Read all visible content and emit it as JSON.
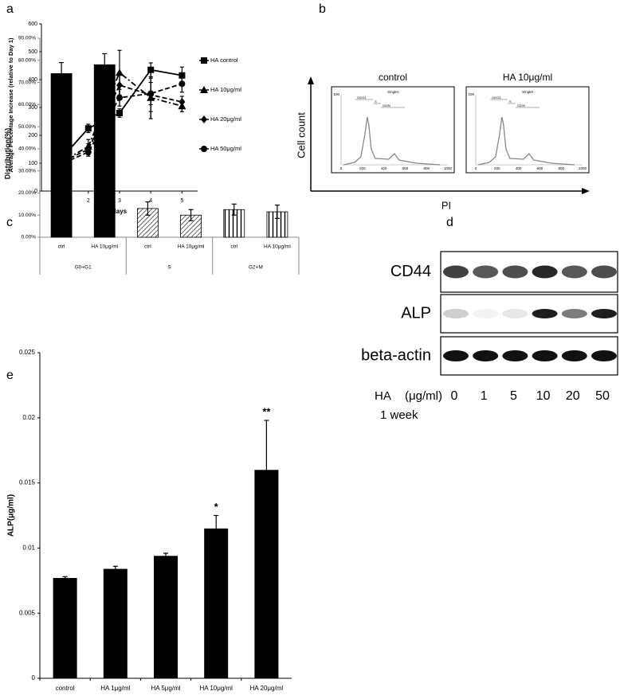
{
  "chart_data": [
    {
      "type": "line",
      "panel_label": "a",
      "x_label": "days",
      "y_label": "Average Percentage Increase (relative to Day 1)",
      "x": [
        1,
        2,
        3,
        4,
        5
      ],
      "xlim": [
        0.5,
        5.5
      ],
      "xticks": [
        1,
        2,
        3,
        4,
        5
      ],
      "ylim": [
        0,
        600
      ],
      "yticks": [
        0,
        100,
        200,
        300,
        400,
        500,
        600
      ],
      "series": [
        {
          "name": "HA control",
          "color": "#000000",
          "marker": "square",
          "dash": "solid",
          "values": [
            100,
            225,
            280,
            435,
            415
          ],
          "errors": [
            8,
            15,
            15,
            25,
            30
          ]
        },
        {
          "name": "HA 10μg/ml",
          "color": "#000000",
          "marker": "triangle",
          "dash": "dash-dot",
          "values": [
            95,
            160,
            425,
            335,
            305
          ],
          "errors": [
            5,
            25,
            80,
            75,
            20
          ]
        },
        {
          "name": "HA 20μg/ml",
          "color": "#000000",
          "marker": "diamond",
          "dash": "dash",
          "values": [
            95,
            150,
            380,
            345,
            320
          ],
          "errors": [
            5,
            20,
            40,
            60,
            20
          ]
        },
        {
          "name": "HA 50μg/ml",
          "color": "#000000",
          "marker": "circle",
          "dash": "dash",
          "values": [
            90,
            140,
            335,
            350,
            385
          ],
          "errors": [
            5,
            15,
            30,
            40,
            30
          ]
        }
      ],
      "legend": "right"
    },
    {
      "type": "grouped-bar",
      "panel_label": "c",
      "y_label": "Distribution(%)",
      "ylim": [
        0,
        90
      ],
      "yticks": [
        {
          "value": 0,
          "label": "0.00%"
        },
        {
          "value": 10,
          "label": "10.00%"
        },
        {
          "value": 20,
          "label": "20.00%"
        },
        {
          "value": 30,
          "label": "30.00%"
        },
        {
          "value": 40,
          "label": "40.00%"
        },
        {
          "value": 50,
          "label": "50.00%"
        },
        {
          "value": 60,
          "label": "60.00%"
        },
        {
          "value": 70,
          "label": "70.00%"
        },
        {
          "value": 80,
          "label": "80.00%"
        },
        {
          "value": 90,
          "label": "90.00%"
        }
      ],
      "groups": [
        {
          "name": "G0+G1",
          "pattern": "solid",
          "color": "#000000",
          "categories": [
            "ctrl",
            "HA 10μg/ml"
          ],
          "values": [
            74,
            78
          ],
          "errors": [
            5,
            5
          ]
        },
        {
          "name": "S",
          "pattern": "diagonal",
          "color": "#000000",
          "categories": [
            "ctrl",
            "HA 10μg/ml"
          ],
          "values": [
            13,
            10
          ],
          "errors": [
            3,
            2.5
          ]
        },
        {
          "name": "G2+M",
          "pattern": "vertical",
          "color": "#000000",
          "categories": [
            "ctrl",
            "HA 10μg/ml"
          ],
          "values": [
            12.5,
            11.5
          ],
          "errors": [
            2.5,
            3
          ]
        }
      ]
    },
    {
      "type": "bar",
      "panel_label": "e",
      "y_label": "ALP(μg/ml)",
      "color": "#000000",
      "categories": [
        "control",
        "HA 1μg/ml",
        "HA 5μg/ml",
        "HA 10μg/ml",
        "HA 20μg/ml"
      ],
      "values": [
        0.0077,
        0.0084,
        0.0094,
        0.0115,
        0.016
      ],
      "errors": [
        0.0001,
        0.0002,
        0.0002,
        0.001,
        0.0038
      ],
      "annotations": [
        null,
        null,
        null,
        "*",
        "**"
      ],
      "ylim": [
        0,
        0.025
      ],
      "yticks": [
        0,
        0.005,
        0.01,
        0.015,
        0.02,
        0.025
      ]
    }
  ],
  "flow_panel": {
    "label": "b",
    "samples": [
      "control",
      "HA 10μg/ml"
    ],
    "y_axis_label": "Cell count",
    "x_axis_label": "PI",
    "gate_title": "Singlet",
    "gates": [
      "G0/G1",
      "S",
      "G2/M"
    ],
    "inner_xticks": [
      0,
      200,
      400,
      600,
      800,
      1000
    ],
    "inner_ytick": 100
  },
  "blot_panel": {
    "label": "d",
    "proteins": [
      "CD44",
      "ALP",
      "beta-actin"
    ],
    "treatment": "HA",
    "unit": "(μg/ml)",
    "doses": [
      0,
      1,
      5,
      10,
      20,
      50
    ],
    "duration": "1 week"
  }
}
